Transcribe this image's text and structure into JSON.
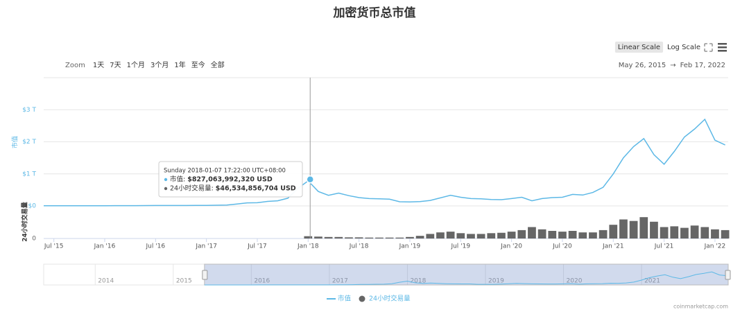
{
  "chart_data": {
    "type": "line",
    "title": "加密货币总市值",
    "zoom": {
      "label": "Zoom",
      "buttons": [
        "1天",
        "7天",
        "1个月",
        "3个月",
        "1年",
        "至今",
        "全部"
      ]
    },
    "scale_buttons": [
      "Linear Scale",
      "Log Scale"
    ],
    "range": {
      "from": "May 26, 2015",
      "arrow": "→",
      "to": "Feb 17, 2022"
    },
    "xlim": [
      2015.4,
      2022.13
    ],
    "xticks": [
      {
        "value": 2015.5,
        "label": "Jul '15"
      },
      {
        "value": 2016.0,
        "label": "Jan '16"
      },
      {
        "value": 2016.5,
        "label": "Jul '16"
      },
      {
        "value": 2017.0,
        "label": "Jan '17"
      },
      {
        "value": 2017.5,
        "label": "Jul '17"
      },
      {
        "value": 2018.0,
        "label": "Jan '18"
      },
      {
        "value": 2018.5,
        "label": "Jul '18"
      },
      {
        "value": 2019.0,
        "label": "Jan '19"
      },
      {
        "value": 2019.5,
        "label": "Jul '19"
      },
      {
        "value": 2020.0,
        "label": "Jan '20"
      },
      {
        "value": 2020.5,
        "label": "Jul '20"
      },
      {
        "value": 2021.0,
        "label": "Jan '21"
      },
      {
        "value": 2021.5,
        "label": "Jul '21"
      },
      {
        "value": 2022.0,
        "label": "Jan '22"
      }
    ],
    "ylabel": "市值",
    "ylim": [
      0,
      4000000000000.0
    ],
    "yticks": [
      {
        "value": 0,
        "label": "$0"
      },
      {
        "value": 1000000000000.0,
        "label": "$1 T"
      },
      {
        "value": 2000000000000.0,
        "label": "$2 T"
      },
      {
        "value": 3000000000000.0,
        "label": "$3 T"
      }
    ],
    "y2label": "24小时交易量",
    "y2lim": [
      0,
      400000000000.0
    ],
    "y2ticks": [
      0
    ],
    "grid": true,
    "x": [
      2015.4,
      2015.5,
      2015.6,
      2015.7,
      2015.8,
      2015.9,
      2016.0,
      2016.1,
      2016.2,
      2016.3,
      2016.4,
      2016.5,
      2016.6,
      2016.7,
      2016.8,
      2016.9,
      2017.0,
      2017.1,
      2017.2,
      2017.3,
      2017.4,
      2017.5,
      2017.6,
      2017.7,
      2017.8,
      2017.9,
      2018.0,
      2018.1,
      2018.2,
      2018.3,
      2018.4,
      2018.5,
      2018.6,
      2018.7,
      2018.8,
      2018.9,
      2019.0,
      2019.1,
      2019.2,
      2019.3,
      2019.4,
      2019.5,
      2019.6,
      2019.7,
      2019.8,
      2019.9,
      2020.0,
      2020.1,
      2020.2,
      2020.3,
      2020.4,
      2020.5,
      2020.6,
      2020.7,
      2020.8,
      2020.9,
      2021.0,
      2021.1,
      2021.2,
      2021.3,
      2021.4,
      2021.5,
      2021.6,
      2021.7,
      2021.8,
      2021.9,
      2022.0,
      2022.1
    ],
    "series": [
      {
        "name": "市值",
        "color": "#5cb8e6",
        "values": [
          5000000000.0,
          4000000000.0,
          4000000000.0,
          4000000000.0,
          5000000000.0,
          6000000000.0,
          7000000000.0,
          8000000000.0,
          8000000000.0,
          9000000000.0,
          11000000000.0,
          12000000000.0,
          12000000000.0,
          13000000000.0,
          14000000000.0,
          17000000000.0,
          18000000000.0,
          22000000000.0,
          27000000000.0,
          60000000000.0,
          95000000000.0,
          100000000000.0,
          140000000000.0,
          160000000000.0,
          240000000000.0,
          550000000000.0,
          780000000000.0,
          450000000000.0,
          330000000000.0,
          400000000000.0,
          320000000000.0,
          260000000000.0,
          230000000000.0,
          220000000000.0,
          210000000000.0,
          130000000000.0,
          125000000000.0,
          135000000000.0,
          170000000000.0,
          250000000000.0,
          330000000000.0,
          270000000000.0,
          230000000000.0,
          220000000000.0,
          200000000000.0,
          195000000000.0,
          230000000000.0,
          270000000000.0,
          160000000000.0,
          230000000000.0,
          260000000000.0,
          270000000000.0,
          360000000000.0,
          340000000000.0,
          420000000000.0,
          580000000000.0,
          1000000000000.0,
          1500000000000.0,
          1850000000000.0,
          2100000000000.0,
          1600000000000.0,
          1300000000000.0,
          1700000000000.0,
          2150000000000.0,
          2400000000000.0,
          2700000000000.0,
          2050000000000.0,
          1900000000000.0
        ]
      },
      {
        "name": "24小时交易量",
        "color": "#666666",
        "axis": "y2",
        "type": "bar",
        "values": [
          null,
          null,
          null,
          null,
          null,
          null,
          null,
          null,
          null,
          null,
          null,
          null,
          null,
          null,
          null,
          null,
          null,
          null,
          null,
          null,
          null,
          null,
          null,
          null,
          null,
          null,
          30000000000.0,
          25000000000.0,
          20000000000.0,
          20000000000.0,
          15000000000.0,
          15000000000.0,
          12000000000.0,
          12000000000.0,
          12000000000.0,
          12000000000.0,
          20000000000.0,
          35000000000.0,
          60000000000.0,
          80000000000.0,
          90000000000.0,
          70000000000.0,
          60000000000.0,
          60000000000.0,
          70000000000.0,
          75000000000.0,
          90000000000.0,
          110000000000.0,
          150000000000.0,
          120000000000.0,
          100000000000.0,
          90000000000.0,
          100000000000.0,
          80000000000.0,
          80000000000.0,
          110000000000.0,
          180000000000.0,
          250000000000.0,
          230000000000.0,
          280000000000.0,
          220000000000.0,
          150000000000.0,
          160000000000.0,
          140000000000.0,
          170000000000.0,
          150000000000.0,
          120000000000.0,
          110000000000.0
        ]
      }
    ],
    "tooltip": {
      "header": "Sunday 2018-01-07 17:22:00 UTC+08:00",
      "x": 2018.02,
      "items": [
        {
          "name": "市值:",
          "value": 827063992320,
          "label": "$827,063,992,320 USD"
        },
        {
          "name": "24小时交易量:",
          "value": 46534856704,
          "label": "$46,534,856,704 USD"
        }
      ]
    },
    "navigator": {
      "xlim": [
        2013.34,
        2022.11
      ],
      "ticks": [
        2014,
        2015,
        2016,
        2017,
        2018,
        2019,
        2020,
        2021
      ]
    },
    "credit": "coinmarketcap.com"
  }
}
